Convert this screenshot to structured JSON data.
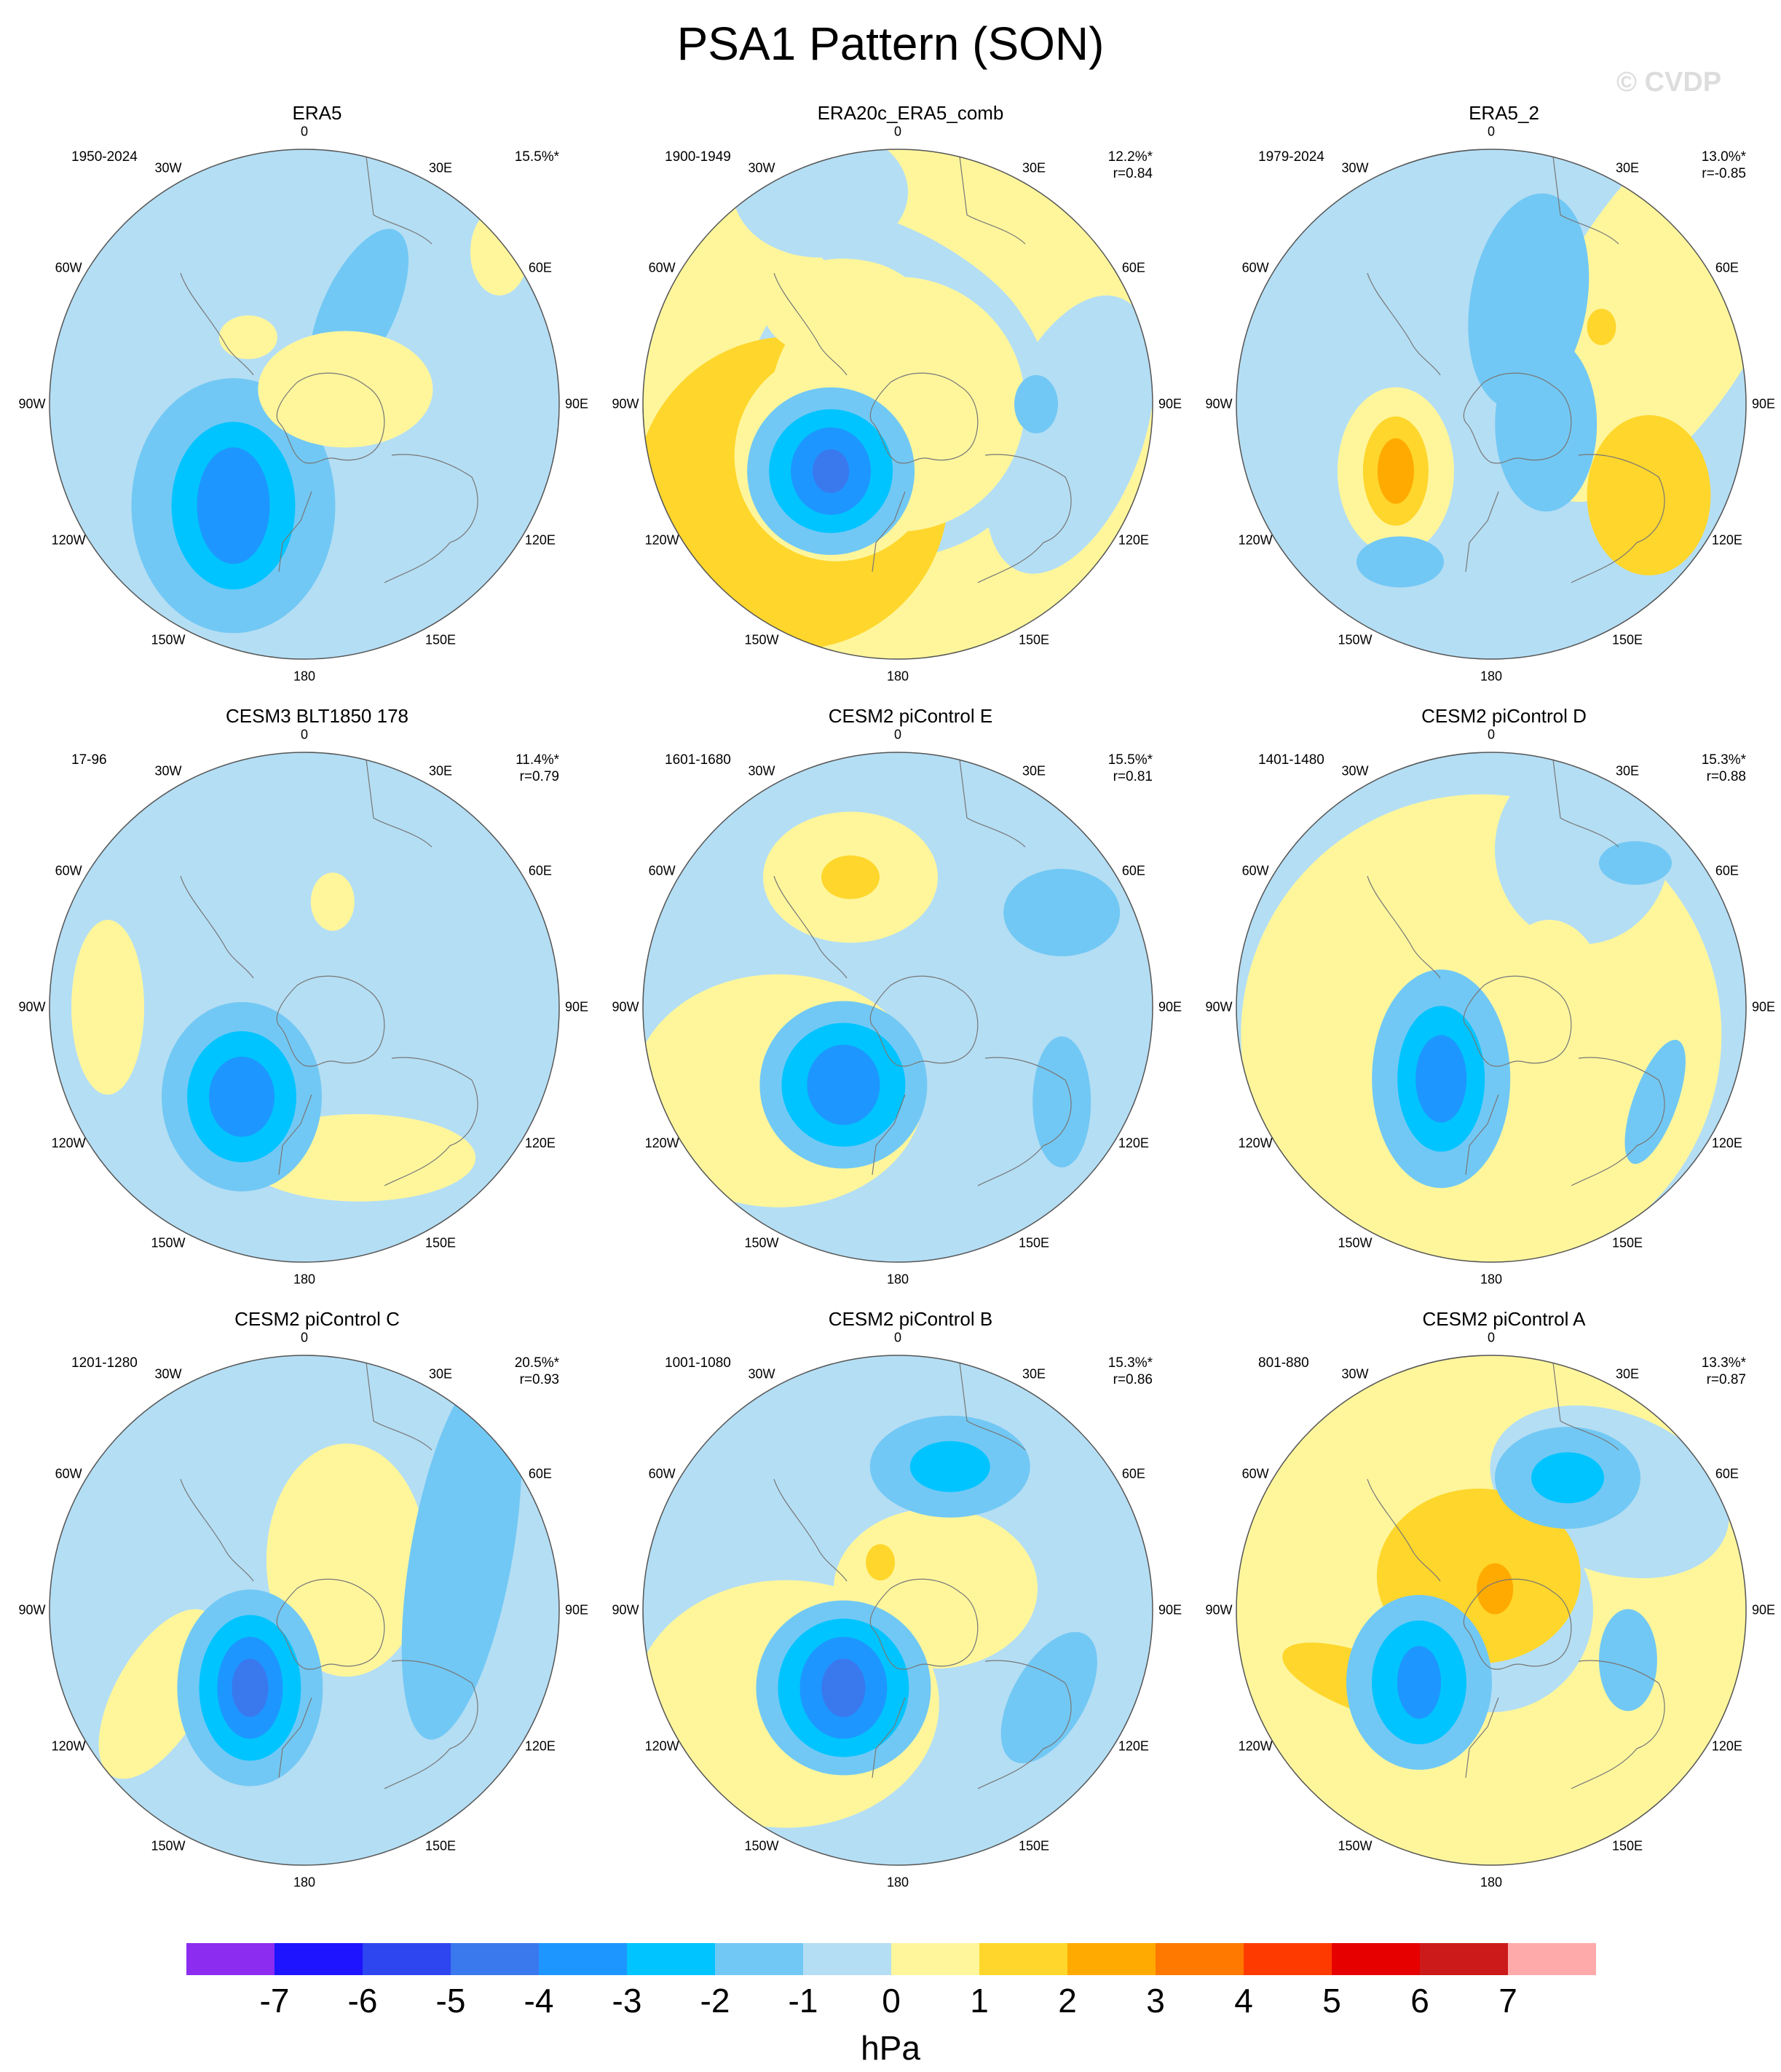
{
  "title": "PSA1 Pattern (SON)",
  "watermark": "© CVDP",
  "units": "hPa",
  "chart_data": {
    "type": "map",
    "projection": "south-polar-stereographic",
    "longitude_labels": [
      "0",
      "30E",
      "60E",
      "90E",
      "120E",
      "150E",
      "180",
      "150W",
      "120W",
      "90W",
      "60W",
      "30W"
    ],
    "colorbar": {
      "colors": [
        "#8b2cf0",
        "#1e14ff",
        "#2e46f0",
        "#3a78ee",
        "#1e96ff",
        "#00c4ff",
        "#72c8f4",
        "#b4def4",
        "#fff69c",
        "#ffd62c",
        "#ffaa00",
        "#ff7800",
        "#ff3a00",
        "#e60000",
        "#cc1a1a",
        "#ffaaaa"
      ],
      "tick_labels": [
        "-7",
        "-6",
        "-5",
        "-4",
        "-3",
        "-2",
        "-1",
        "0",
        "1",
        "2",
        "3",
        "4",
        "5",
        "6",
        "7"
      ]
    },
    "panels": [
      {
        "title": "ERA5",
        "period": "1950-2024",
        "pct": "15.5%*",
        "corr": "",
        "background": 0,
        "blobs": [
          {
            "lev": 0,
            "r": 230,
            "a": 35,
            "rx": 150,
            "ry": 100,
            "rot": 10
          },
          {
            "lev": -1,
            "r": 170,
            "a": 215,
            "rx": 140,
            "ry": 175,
            "rot": 0
          },
          {
            "lev": -2,
            "r": 170,
            "a": 215,
            "rx": 85,
            "ry": 115,
            "rot": 0
          },
          {
            "lev": -3,
            "r": 170,
            "a": 215,
            "rx": 50,
            "ry": 80,
            "rot": 0
          },
          {
            "lev": -1,
            "r": 150,
            "a": 30,
            "rx": 50,
            "ry": 120,
            "rot": 25
          },
          {
            "lev": 1,
            "r": 60,
            "a": 70,
            "rx": 120,
            "ry": 80,
            "rot": 0
          },
          {
            "lev": 1,
            "r": 120,
            "a": 320,
            "rx": 40,
            "ry": 30,
            "rot": 0
          },
          {
            "lev": 1,
            "r": 340,
            "a": 52,
            "rx": 40,
            "ry": 60,
            "rot": 0
          }
        ]
      },
      {
        "title": "ERA20c_ERA5_comb",
        "period": "1900-1949",
        "pct": "12.2%*",
        "corr": "r=0.84",
        "background": 1,
        "blobs": [
          {
            "lev": 0,
            "r": 310,
            "a": 340,
            "rx": 120,
            "ry": 90,
            "rot": 0
          },
          {
            "lev": 0,
            "r": 170,
            "a": 10,
            "rx": 170,
            "ry": 60,
            "rot": 30
          },
          {
            "lev": 0,
            "r": 240,
            "a": 100,
            "rx": 100,
            "ry": 200,
            "rot": 20
          },
          {
            "lev": 0,
            "r": 0,
            "a": 0,
            "rx": 210,
            "ry": 210,
            "rot": 0
          },
          {
            "lev": 2,
            "r": 190,
            "a": 230,
            "rx": 215,
            "ry": 215,
            "rot": 0
          },
          {
            "lev": 1,
            "r": 0,
            "a": 0,
            "rx": 175,
            "ry": 175,
            "rot": 0
          },
          {
            "lev": 1,
            "r": 150,
            "a": 330,
            "rx": 110,
            "ry": 70,
            "rot": 0
          },
          {
            "lev": 1,
            "r": 110,
            "a": 230,
            "rx": 140,
            "ry": 145,
            "rot": 0
          },
          {
            "lev": -1,
            "r": 130,
            "a": 225,
            "rx": 115,
            "ry": 115,
            "rot": 0
          },
          {
            "lev": -2,
            "r": 130,
            "a": 225,
            "rx": 85,
            "ry": 85,
            "rot": 0
          },
          {
            "lev": -3,
            "r": 130,
            "a": 225,
            "rx": 55,
            "ry": 60,
            "rot": 0
          },
          {
            "lev": -4,
            "r": 130,
            "a": 225,
            "rx": 25,
            "ry": 30,
            "rot": 0
          },
          {
            "lev": -1,
            "r": 190,
            "a": 90,
            "rx": 30,
            "ry": 40,
            "rot": 0
          }
        ]
      },
      {
        "title": "ERA5_2",
        "period": "1979-2024",
        "pct": "13.0%*",
        "corr": "r=-0.85",
        "background": 0,
        "blobs": [
          {
            "lev": 1,
            "r": 270,
            "a": 60,
            "rx": 140,
            "ry": 300,
            "rot": 30
          },
          {
            "lev": -1,
            "r": 150,
            "a": 20,
            "rx": 80,
            "ry": 150,
            "rot": 10
          },
          {
            "lev": -1,
            "r": 80,
            "a": 110,
            "rx": 70,
            "ry": 120,
            "rot": 0
          },
          {
            "lev": 1,
            "r": 160,
            "a": 235,
            "rx": 80,
            "ry": 115,
            "rot": 0
          },
          {
            "lev": 2,
            "r": 160,
            "a": 235,
            "rx": 45,
            "ry": 75,
            "rot": 0
          },
          {
            "lev": 3,
            "r": 160,
            "a": 235,
            "rx": 25,
            "ry": 45,
            "rot": 0
          },
          {
            "lev": 2,
            "r": 250,
            "a": 120,
            "rx": 85,
            "ry": 110,
            "rot": 0
          },
          {
            "lev": 2,
            "r": 185,
            "a": 55,
            "rx": 20,
            "ry": 25,
            "rot": 0
          },
          {
            "lev": -1,
            "r": 250,
            "a": 210,
            "rx": 60,
            "ry": 35,
            "rot": 0
          }
        ]
      },
      {
        "title": "CESM3 BLT1850 178",
        "period": "17-96",
        "pct": "11.4%*",
        "corr": "r=0.79",
        "background": 0,
        "blobs": [
          {
            "lev": 0,
            "r": 100,
            "a": 200,
            "rx": 280,
            "ry": 330,
            "rot": 0
          },
          {
            "lev": 0,
            "r": 140,
            "a": 10,
            "rx": 60,
            "ry": 280,
            "rot": 40
          },
          {
            "lev": 1,
            "r": 220,
            "a": 160,
            "rx": 160,
            "ry": 60,
            "rot": 0
          },
          {
            "lev": 1,
            "r": 270,
            "a": 270,
            "rx": 50,
            "ry": 120,
            "rot": 0
          },
          {
            "lev": 1,
            "r": 150,
            "a": 15,
            "rx": 30,
            "ry": 40,
            "rot": 0
          },
          {
            "lev": -1,
            "r": 150,
            "a": 215,
            "rx": 110,
            "ry": 130,
            "rot": 0
          },
          {
            "lev": -2,
            "r": 150,
            "a": 215,
            "rx": 75,
            "ry": 90,
            "rot": 0
          },
          {
            "lev": -3,
            "r": 150,
            "a": 215,
            "rx": 45,
            "ry": 55,
            "rot": 0
          }
        ]
      },
      {
        "title": "CESM2 piControl E",
        "period": "1601-1680",
        "pct": "15.5%*",
        "corr": "r=0.81",
        "background": 0,
        "blobs": [
          {
            "lev": 0,
            "r": 220,
            "a": 300,
            "rx": 230,
            "ry": 200,
            "rot": 0
          },
          {
            "lev": 0,
            "r": 0,
            "a": 0,
            "rx": 180,
            "ry": 180,
            "rot": 0
          },
          {
            "lev": 1,
            "r": 200,
            "a": 235,
            "rx": 200,
            "ry": 160,
            "rot": 0
          },
          {
            "lev": 1,
            "r": 190,
            "a": 340,
            "rx": 120,
            "ry": 90,
            "rot": 0
          },
          {
            "lev": 2,
            "r": 190,
            "a": 340,
            "rx": 40,
            "ry": 30,
            "rot": 0
          },
          {
            "lev": -1,
            "r": 260,
            "a": 60,
            "rx": 80,
            "ry": 60,
            "rot": 0
          },
          {
            "lev": -1,
            "r": 260,
            "a": 120,
            "rx": 40,
            "ry": 90,
            "rot": 0
          },
          {
            "lev": -1,
            "r": 130,
            "a": 215,
            "rx": 115,
            "ry": 115,
            "rot": 0
          },
          {
            "lev": -2,
            "r": 130,
            "a": 215,
            "rx": 85,
            "ry": 85,
            "rot": 0
          },
          {
            "lev": -3,
            "r": 130,
            "a": 215,
            "rx": 50,
            "ry": 55,
            "rot": 0
          }
        ]
      },
      {
        "title": "CESM2 piControl D",
        "period": "1401-1480",
        "pct": "15.3%*",
        "corr": "r=0.88",
        "background": 0,
        "blobs": [
          {
            "lev": 1,
            "r": 40,
            "a": 200,
            "rx": 330,
            "ry": 330,
            "rot": 0
          },
          {
            "lev": 0,
            "r": 250,
            "a": 30,
            "rx": 120,
            "ry": 130,
            "rot": 0
          },
          {
            "lev": 1,
            "r": 200,
            "a": 270,
            "rx": 70,
            "ry": 100,
            "rot": 0
          },
          {
            "lev": 1,
            "r": 80,
            "a": 90,
            "rx": 80,
            "ry": 120,
            "rot": 0
          },
          {
            "lev": 1,
            "r": 150,
            "a": 340,
            "rx": 60,
            "ry": 50,
            "rot": 0
          },
          {
            "lev": -1,
            "r": 120,
            "a": 215,
            "rx": 95,
            "ry": 150,
            "rot": 0
          },
          {
            "lev": -2,
            "r": 120,
            "a": 215,
            "rx": 60,
            "ry": 100,
            "rot": 0
          },
          {
            "lev": -3,
            "r": 120,
            "a": 215,
            "rx": 35,
            "ry": 60,
            "rot": 0
          },
          {
            "lev": -1,
            "r": 260,
            "a": 120,
            "rx": 30,
            "ry": 90,
            "rot": 20
          },
          {
            "lev": -1,
            "r": 280,
            "a": 45,
            "rx": 50,
            "ry": 30,
            "rot": 0
          }
        ]
      },
      {
        "title": "CESM2 piControl C",
        "period": "1201-1280",
        "pct": "20.5%*",
        "corr": "r=0.93",
        "background": 0,
        "blobs": [
          {
            "lev": 0,
            "r": 150,
            "a": 250,
            "rx": 250,
            "ry": 360,
            "rot": 0
          },
          {
            "lev": 0,
            "r": 220,
            "a": 350,
            "rx": 170,
            "ry": 120,
            "rot": 0
          },
          {
            "lev": 1,
            "r": 230,
            "a": 240,
            "rx": 60,
            "ry": 130,
            "rot": 30
          },
          {
            "lev": 1,
            "r": 90,
            "a": 40,
            "rx": 110,
            "ry": 160,
            "rot": 0
          },
          {
            "lev": -1,
            "r": 230,
            "a": 70,
            "rx": 70,
            "ry": 260,
            "rot": 10
          },
          {
            "lev": -1,
            "r": 130,
            "a": 215,
            "rx": 100,
            "ry": 135,
            "rot": 0
          },
          {
            "lev": -2,
            "r": 130,
            "a": 215,
            "rx": 70,
            "ry": 100,
            "rot": 0
          },
          {
            "lev": -3,
            "r": 130,
            "a": 215,
            "rx": 45,
            "ry": 70,
            "rot": 0
          },
          {
            "lev": -4,
            "r": 130,
            "a": 215,
            "rx": 25,
            "ry": 40,
            "rot": 0
          }
        ]
      },
      {
        "title": "CESM2 piControl B",
        "period": "1001-1080",
        "pct": "15.3%*",
        "corr": "r=0.86",
        "background": 0,
        "blobs": [
          {
            "lev": 0,
            "r": 230,
            "a": 285,
            "rx": 240,
            "ry": 190,
            "rot": 0
          },
          {
            "lev": 0,
            "r": 0,
            "a": 0,
            "rx": 160,
            "ry": 170,
            "rot": 0
          },
          {
            "lev": 1,
            "r": 200,
            "a": 230,
            "rx": 210,
            "ry": 170,
            "rot": 0
          },
          {
            "lev": 1,
            "r": 60,
            "a": 60,
            "rx": 140,
            "ry": 110,
            "rot": 0
          },
          {
            "lev": 2,
            "r": 70,
            "a": 340,
            "rx": 20,
            "ry": 25,
            "rot": 0
          },
          {
            "lev": -1,
            "r": 210,
            "a": 20,
            "rx": 110,
            "ry": 70,
            "rot": 0
          },
          {
            "lev": -2,
            "r": 210,
            "a": 20,
            "rx": 55,
            "ry": 35,
            "rot": 0
          },
          {
            "lev": -1,
            "r": 240,
            "a": 120,
            "rx": 50,
            "ry": 100,
            "rot": 30
          },
          {
            "lev": -1,
            "r": 130,
            "a": 215,
            "rx": 120,
            "ry": 120,
            "rot": 0
          },
          {
            "lev": -2,
            "r": 130,
            "a": 215,
            "rx": 90,
            "ry": 95,
            "rot": 0
          },
          {
            "lev": -3,
            "r": 130,
            "a": 215,
            "rx": 60,
            "ry": 70,
            "rot": 0
          },
          {
            "lev": -4,
            "r": 130,
            "a": 215,
            "rx": 30,
            "ry": 40,
            "rot": 0
          }
        ]
      },
      {
        "title": "CESM2 piControl A",
        "period": "801-880",
        "pct": "13.3%*",
        "corr": "r=0.87",
        "background": 1,
        "blobs": [
          {
            "lev": 0,
            "r": 230,
            "a": 45,
            "rx": 170,
            "ry": 110,
            "rot": 20
          },
          {
            "lev": 0,
            "r": 0,
            "a": 0,
            "rx": 140,
            "ry": 140,
            "rot": 0
          },
          {
            "lev": 2,
            "r": 50,
            "a": 340,
            "rx": 140,
            "ry": 120,
            "rot": 0
          },
          {
            "lev": 2,
            "r": 200,
            "a": 240,
            "rx": 120,
            "ry": 40,
            "rot": 20
          },
          {
            "lev": 3,
            "r": 30,
            "a": 10,
            "rx": 25,
            "ry": 35,
            "rot": 0
          },
          {
            "lev": -1,
            "r": 210,
            "a": 30,
            "rx": 100,
            "ry": 70,
            "rot": 0
          },
          {
            "lev": -2,
            "r": 210,
            "a": 30,
            "rx": 50,
            "ry": 35,
            "rot": 0
          },
          {
            "lev": -1,
            "r": 200,
            "a": 110,
            "rx": 40,
            "ry": 70,
            "rot": 0
          },
          {
            "lev": -1,
            "r": 140,
            "a": 225,
            "rx": 100,
            "ry": 120,
            "rot": 0
          },
          {
            "lev": -2,
            "r": 140,
            "a": 225,
            "rx": 65,
            "ry": 85,
            "rot": 0
          },
          {
            "lev": -3,
            "r": 140,
            "a": 225,
            "rx": 30,
            "ry": 50,
            "rot": 0
          }
        ]
      }
    ]
  }
}
